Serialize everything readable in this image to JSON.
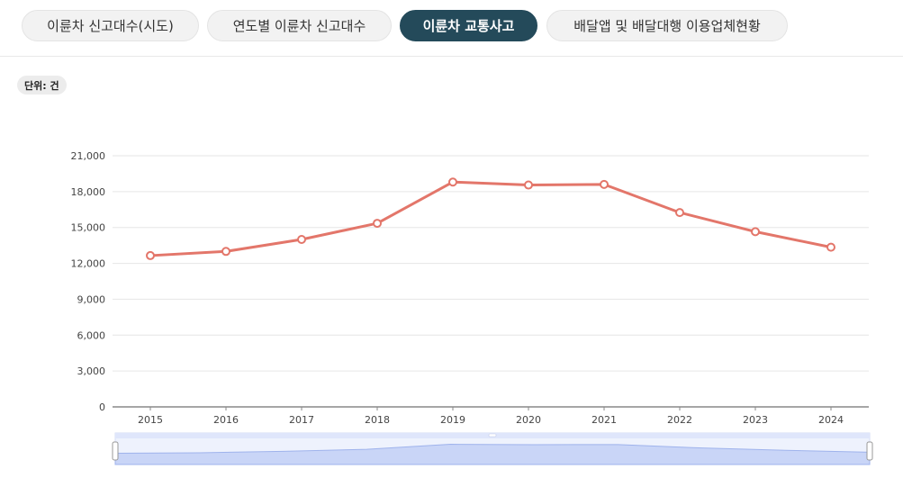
{
  "tabs": [
    {
      "label": "이륜차 신고대수(시도)",
      "active": false
    },
    {
      "label": "연도별 이륜차 신고대수",
      "active": false
    },
    {
      "label": "이륜차 교통사고",
      "active": true
    },
    {
      "label": "배달앱 및 배달대행 이용업체현황",
      "active": false
    }
  ],
  "unit_label": "단위: 건",
  "chart_data": {
    "type": "line",
    "categories": [
      "2015",
      "2016",
      "2017",
      "2018",
      "2019",
      "2020",
      "2021",
      "2022",
      "2023",
      "2024"
    ],
    "values": [
      12650,
      13000,
      14000,
      15350,
      18800,
      18550,
      18600,
      16250,
      14650,
      13350
    ],
    "ylim": [
      0,
      21000
    ],
    "yticks": [
      0,
      3000,
      6000,
      9000,
      12000,
      15000,
      18000,
      21000
    ],
    "ytick_labels": [
      "0",
      "3,000",
      "6,000",
      "9,000",
      "12,000",
      "15,000",
      "18,000",
      "21,000"
    ],
    "grid": true,
    "line_color": "#e3766a",
    "navigator": true
  }
}
